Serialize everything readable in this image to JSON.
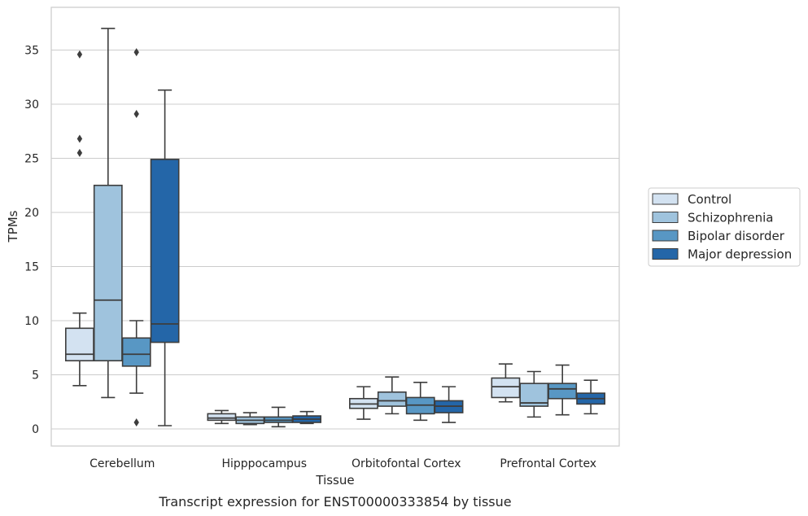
{
  "chart_data": {
    "type": "box",
    "title": "Transcript expression for ENST00000333854 by tissue",
    "xlabel": "Tissue",
    "ylabel": "TPMs",
    "ylim": [
      -1.5,
      38.5
    ],
    "yticks": [
      0,
      5,
      10,
      15,
      20,
      25,
      30,
      35
    ],
    "grid": "horizontal",
    "legend_position": "right",
    "categories": [
      "Cerebellum",
      "Hipppocampus",
      "Orbitofontal Cortex",
      "Prefrontal Cortex"
    ],
    "series": [
      {
        "name": "Control",
        "color": "#d3e2f1",
        "boxes": [
          {
            "whisker_low": 4.0,
            "q1": 6.3,
            "median": 6.9,
            "q3": 9.3,
            "whisker_high": 10.7,
            "outliers": [
              25.5,
              26.8,
              34.6
            ]
          },
          {
            "whisker_low": 0.5,
            "q1": 0.8,
            "median": 1.0,
            "q3": 1.4,
            "whisker_high": 1.7,
            "outliers": []
          },
          {
            "whisker_low": 0.9,
            "q1": 1.9,
            "median": 2.3,
            "q3": 2.8,
            "whisker_high": 3.9,
            "outliers": []
          },
          {
            "whisker_low": 2.5,
            "q1": 2.9,
            "median": 3.9,
            "q3": 4.7,
            "whisker_high": 6.0,
            "outliers": []
          }
        ]
      },
      {
        "name": "Schizophrenia",
        "color": "#9fc3dd",
        "boxes": [
          {
            "whisker_low": 2.9,
            "q1": 6.3,
            "median": 11.9,
            "q3": 22.5,
            "whisker_high": 37.0,
            "outliers": []
          },
          {
            "whisker_low": 0.4,
            "q1": 0.5,
            "median": 0.8,
            "q3": 1.1,
            "whisker_high": 1.5,
            "outliers": []
          },
          {
            "whisker_low": 1.4,
            "q1": 2.1,
            "median": 2.6,
            "q3": 3.4,
            "whisker_high": 4.8,
            "outliers": []
          },
          {
            "whisker_low": 1.1,
            "q1": 2.1,
            "median": 2.4,
            "q3": 4.2,
            "whisker_high": 5.3,
            "outliers": []
          }
        ]
      },
      {
        "name": "Bipolar disorder",
        "color": "#5897c4",
        "boxes": [
          {
            "whisker_low": 3.3,
            "q1": 5.8,
            "median": 6.9,
            "q3": 8.4,
            "whisker_high": 10.0,
            "outliers": [
              0.6,
              29.1,
              34.8
            ]
          },
          {
            "whisker_low": 0.2,
            "q1": 0.6,
            "median": 0.8,
            "q3": 1.1,
            "whisker_high": 2.0,
            "outliers": []
          },
          {
            "whisker_low": 0.8,
            "q1": 1.4,
            "median": 2.2,
            "q3": 2.9,
            "whisker_high": 4.3,
            "outliers": []
          },
          {
            "whisker_low": 1.3,
            "q1": 2.8,
            "median": 3.7,
            "q3": 4.2,
            "whisker_high": 5.9,
            "outliers": []
          }
        ]
      },
      {
        "name": "Major depression",
        "color": "#2466a8",
        "boxes": [
          {
            "whisker_low": 0.3,
            "q1": 8.0,
            "median": 9.7,
            "q3": 24.9,
            "whisker_high": 31.3,
            "outliers": []
          },
          {
            "whisker_low": 0.5,
            "q1": 0.6,
            "median": 0.9,
            "q3": 1.2,
            "whisker_high": 1.6,
            "outliers": []
          },
          {
            "whisker_low": 0.6,
            "q1": 1.5,
            "median": 2.1,
            "q3": 2.6,
            "whisker_high": 3.9,
            "outliers": []
          },
          {
            "whisker_low": 1.4,
            "q1": 2.3,
            "median": 2.8,
            "q3": 3.3,
            "whisker_high": 4.5,
            "outliers": []
          }
        ]
      }
    ]
  }
}
